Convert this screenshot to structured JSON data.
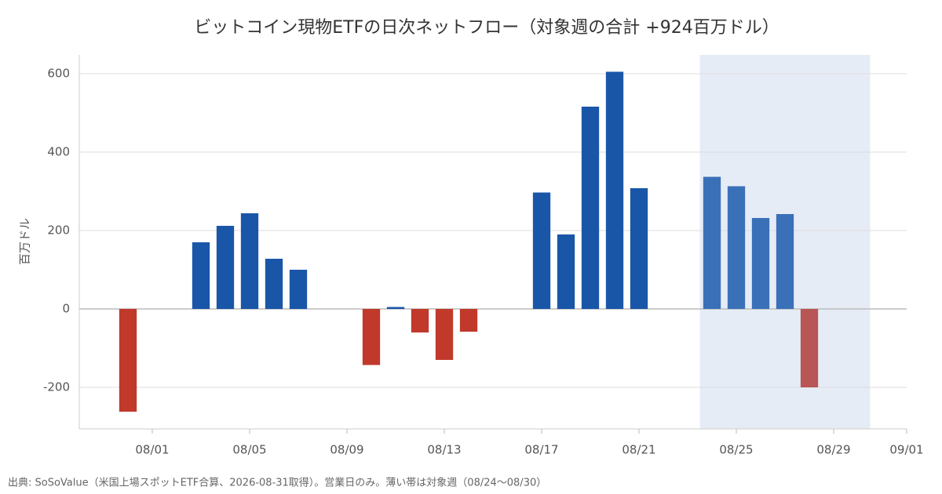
{
  "chart_data": {
    "type": "bar",
    "title": "ビットコイン現物ETFの日次ネットフロー（対象週の合計 +924百万ドル）",
    "y_label": "百万ドル",
    "source": "出典: SoSoValue（米国上場スポットETF合算、2026-08-31取得）。営業日のみ。薄い帯は対象週（08/24〜08/30）",
    "x": [
      "07/31",
      "08/03",
      "08/04",
      "08/05",
      "08/06",
      "08/07",
      "08/10",
      "08/11",
      "08/12",
      "08/13",
      "08/14",
      "08/17",
      "08/18",
      "08/19",
      "08/20",
      "08/21",
      "08/24",
      "08/25",
      "08/26",
      "08/27",
      "08/28"
    ],
    "values": [
      -262,
      170,
      212,
      244,
      128,
      100,
      -143,
      5,
      -60,
      -130,
      -58,
      297,
      190,
      516,
      605,
      308,
      337,
      313,
      232,
      242,
      -200
    ],
    "colors": [
      "#c0392b",
      "#1a56a8",
      "#1a56a8",
      "#1a56a8",
      "#1a56a8",
      "#1a56a8",
      "#c0392b",
      "#1a56a8",
      "#c0392b",
      "#c0392b",
      "#c0392b",
      "#1a56a8",
      "#1a56a8",
      "#1a56a8",
      "#1a56a8",
      "#1a56a8",
      "#3a70b8",
      "#3a70b8",
      "#3a70b8",
      "#3a70b8",
      "#b85555"
    ],
    "highlight": [
      "08/24",
      "08/30"
    ],
    "highlight_color": "#e6ecf6",
    "xlim": [
      "07/29",
      "09/01"
    ],
    "xticks": [
      "08/01",
      "08/05",
      "08/09",
      "08/13",
      "08/17",
      "08/21",
      "08/25",
      "08/29",
      "09/01"
    ],
    "ylim": [
      -306,
      648
    ],
    "yticks": [
      -200,
      0,
      200,
      400,
      600
    ],
    "grid": true
  }
}
